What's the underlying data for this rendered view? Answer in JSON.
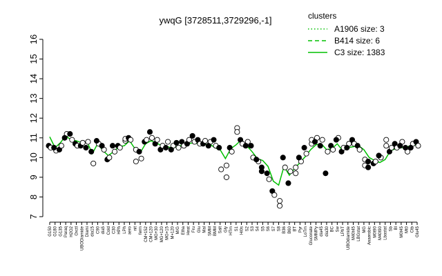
{
  "chart_data": {
    "type": "line",
    "title": "ywqG [3728511,3729296,-1]",
    "xlabel": "",
    "ylabel": "",
    "ylim": [
      7,
      16
    ],
    "yticks": [
      7,
      8,
      9,
      10,
      11,
      12,
      13,
      14,
      15,
      16
    ],
    "grid": false,
    "legend": {
      "title": "clusters",
      "placement": "top-right",
      "color": "#00c000",
      "entries": [
        {
          "label": "A1906 size: 3",
          "style": "dotted"
        },
        {
          "label": "B414 size: 6",
          "style": "dashed"
        },
        {
          "label": "C3 size: 1383",
          "style": "solid"
        }
      ]
    },
    "x_labels": [
      "G150",
      "G180",
      "G135",
      "Paraq",
      "H2O2",
      "Oxctl",
      "UBODiamide",
      "Diami",
      "dia15",
      "C90",
      "dia5",
      "Cold",
      "C30",
      "HPh",
      "LPh",
      "aero",
      "nit",
      "ferm",
      "CM+152",
      "CM+120",
      "MG+30",
      "MG+120",
      "MG+15",
      "M+120",
      "M/G",
      "Etha",
      "Heat",
      "Fru",
      "Glu",
      "Mal",
      "SMM",
      "BMM",
      "Salt",
      "Gly",
      "HTm",
      "S1",
      "Hi0s",
      "S2",
      "S3",
      "S4",
      "S5",
      "S6",
      "S7",
      "S8",
      "B36",
      "B60",
      "BT",
      "Pyr",
      "LoTm",
      "Gluconate",
      "SMMPy",
      "dia45",
      "dia30",
      "BC",
      "Sw",
      "LPhT",
      "UBOdiamide",
      "M40t45",
      "LBGstat",
      "MG",
      "Anaerobic",
      "M0t90",
      "M40t90",
      "Lbastat",
      "Sb",
      "Bl",
      "M0t45",
      "Mt0",
      "Ctb",
      "Glu45"
    ],
    "series": [
      {
        "style": "solid",
        "color": "#00c000",
        "x": [
          1,
          2,
          3,
          4,
          5,
          6,
          7,
          8,
          9,
          10,
          11,
          12,
          13,
          14,
          15,
          16,
          17,
          18,
          19,
          20,
          21,
          22,
          23,
          24,
          25,
          26,
          27,
          28,
          29,
          30,
          31,
          32,
          33,
          34,
          35,
          36,
          37,
          38,
          39,
          40,
          41,
          42,
          43,
          44,
          45,
          46,
          47,
          48,
          49,
          50,
          51,
          52,
          53,
          54,
          55,
          56,
          57,
          58,
          59,
          60,
          61,
          62,
          63,
          64,
          65,
          66,
          67,
          68,
          69,
          70
        ],
        "values": [
          11.05,
          10.5,
          10.75,
          11.1,
          10.9,
          10.85,
          10.75,
          10.8,
          10.2,
          10.7,
          10.35,
          10.1,
          10.3,
          10.55,
          10.6,
          10.85,
          10.45,
          10.25,
          10.7,
          10.85,
          10.75,
          10.6,
          10.55,
          10.5,
          10.55,
          10.65,
          10.7,
          10.75,
          10.7,
          10.65,
          10.7,
          10.5,
          10.4,
          9.95,
          10.45,
          10.65,
          10.9,
          10.6,
          10.3,
          9.95,
          9.85,
          9.55,
          8.8,
          8.6,
          9.55,
          9.1,
          9.45,
          9.75,
          10.05,
          10.4,
          10.65,
          10.7,
          10.4,
          10.45,
          10.7,
          10.35,
          10.5,
          10.55,
          10.6,
          10.4,
          10.0,
          9.85,
          9.75,
          9.9,
          10.35,
          10.45,
          10.5,
          10.55,
          10.6,
          10.65
        ]
      }
    ],
    "points": [
      {
        "x": 1,
        "y": 10.6,
        "open": false
      },
      {
        "x": 1,
        "y": 10.5,
        "open": true
      },
      {
        "x": 2,
        "y": 10.35,
        "open": true
      },
      {
        "x": 2,
        "y": 10.5,
        "open": false
      },
      {
        "x": 3,
        "y": 10.4,
        "open": false
      },
      {
        "x": 3,
        "y": 10.6,
        "open": true
      },
      {
        "x": 4,
        "y": 11.2,
        "open": true
      },
      {
        "x": 4,
        "y": 11.0,
        "open": false
      },
      {
        "x": 5,
        "y": 11.2,
        "open": false
      },
      {
        "x": 5,
        "y": 10.9,
        "open": true
      },
      {
        "x": 6,
        "y": 10.7,
        "open": false
      },
      {
        "x": 6,
        "y": 10.6,
        "open": true
      },
      {
        "x": 7,
        "y": 10.6,
        "open": false
      },
      {
        "x": 7,
        "y": 10.75,
        "open": true
      },
      {
        "x": 8,
        "y": 10.8,
        "open": true
      },
      {
        "x": 8,
        "y": 10.5,
        "open": false
      },
      {
        "x": 9,
        "y": 10.3,
        "open": false
      },
      {
        "x": 9,
        "y": 9.7,
        "open": true
      },
      {
        "x": 10,
        "y": 10.7,
        "open": true
      },
      {
        "x": 10,
        "y": 10.85,
        "open": false
      },
      {
        "x": 11,
        "y": 10.4,
        "open": true
      },
      {
        "x": 11,
        "y": 10.6,
        "open": false
      },
      {
        "x": 12,
        "y": 9.9,
        "open": false
      },
      {
        "x": 12,
        "y": 10.0,
        "open": true
      },
      {
        "x": 13,
        "y": 10.3,
        "open": true
      },
      {
        "x": 13,
        "y": 10.6,
        "open": false
      },
      {
        "x": 14,
        "y": 10.6,
        "open": false
      },
      {
        "x": 14,
        "y": 10.5,
        "open": true
      },
      {
        "x": 15,
        "y": 10.85,
        "open": true
      },
      {
        "x": 15,
        "y": 10.95,
        "open": true
      },
      {
        "x": 16,
        "y": 11.0,
        "open": false
      },
      {
        "x": 16,
        "y": 10.9,
        "open": true
      },
      {
        "x": 17,
        "y": 10.4,
        "open": true
      },
      {
        "x": 17,
        "y": 9.8,
        "open": true
      },
      {
        "x": 18,
        "y": 10.3,
        "open": false
      },
      {
        "x": 18,
        "y": 9.95,
        "open": true
      },
      {
        "x": 19,
        "y": 10.8,
        "open": false
      },
      {
        "x": 19,
        "y": 10.9,
        "open": true
      },
      {
        "x": 20,
        "y": 11.3,
        "open": false
      },
      {
        "x": 20,
        "y": 11.0,
        "open": true
      },
      {
        "x": 21,
        "y": 10.7,
        "open": false
      },
      {
        "x": 21,
        "y": 10.9,
        "open": true
      },
      {
        "x": 22,
        "y": 10.4,
        "open": false
      },
      {
        "x": 22,
        "y": 10.6,
        "open": true
      },
      {
        "x": 23,
        "y": 10.5,
        "open": false
      },
      {
        "x": 23,
        "y": 10.8,
        "open": true
      },
      {
        "x": 24,
        "y": 10.6,
        "open": true
      },
      {
        "x": 24,
        "y": 10.4,
        "open": false
      },
      {
        "x": 25,
        "y": 10.75,
        "open": false
      },
      {
        "x": 25,
        "y": 10.5,
        "open": true
      },
      {
        "x": 26,
        "y": 10.8,
        "open": false
      },
      {
        "x": 26,
        "y": 10.6,
        "open": true
      },
      {
        "x": 27,
        "y": 10.7,
        "open": false
      },
      {
        "x": 27,
        "y": 10.9,
        "open": true
      },
      {
        "x": 28,
        "y": 11.1,
        "open": false
      },
      {
        "x": 28,
        "y": 10.8,
        "open": true
      },
      {
        "x": 29,
        "y": 10.9,
        "open": false
      },
      {
        "x": 29,
        "y": 10.7,
        "open": true
      },
      {
        "x": 30,
        "y": 10.7,
        "open": false
      },
      {
        "x": 30,
        "y": 10.85,
        "open": true
      },
      {
        "x": 31,
        "y": 10.8,
        "open": true
      },
      {
        "x": 31,
        "y": 10.6,
        "open": false
      },
      {
        "x": 32,
        "y": 10.9,
        "open": false
      },
      {
        "x": 32,
        "y": 10.6,
        "open": true
      },
      {
        "x": 33,
        "y": 10.5,
        "open": false
      },
      {
        "x": 33,
        "y": 9.4,
        "open": true
      },
      {
        "x": 34,
        "y": 9.6,
        "open": true
      },
      {
        "x": 34,
        "y": 9.0,
        "open": true
      },
      {
        "x": 35,
        "y": 10.5,
        "open": false
      },
      {
        "x": 35,
        "y": 10.3,
        "open": true
      },
      {
        "x": 36,
        "y": 11.5,
        "open": true
      },
      {
        "x": 36,
        "y": 11.3,
        "open": true
      },
      {
        "x": 37,
        "y": 10.9,
        "open": false
      },
      {
        "x": 37,
        "y": 10.7,
        "open": true
      },
      {
        "x": 38,
        "y": 10.8,
        "open": true
      },
      {
        "x": 38,
        "y": 10.6,
        "open": false
      },
      {
        "x": 39,
        "y": 10.0,
        "open": true
      },
      {
        "x": 39,
        "y": 10.6,
        "open": false
      },
      {
        "x": 40,
        "y": 9.8,
        "open": true
      },
      {
        "x": 40,
        "y": 9.9,
        "open": false
      },
      {
        "x": 41,
        "y": 9.5,
        "open": false
      },
      {
        "x": 41,
        "y": 9.3,
        "open": false
      },
      {
        "x": 42,
        "y": 9.2,
        "open": false
      },
      {
        "x": 42,
        "y": 8.9,
        "open": true
      },
      {
        "x": 43,
        "y": 8.3,
        "open": false
      },
      {
        "x": 43,
        "y": 8.1,
        "open": true
      },
      {
        "x": 44,
        "y": 7.8,
        "open": true
      },
      {
        "x": 44,
        "y": 7.55,
        "open": true
      },
      {
        "x": 45,
        "y": 10.0,
        "open": false
      },
      {
        "x": 45,
        "y": 9.5,
        "open": true
      },
      {
        "x": 46,
        "y": 8.7,
        "open": false
      },
      {
        "x": 46,
        "y": 9.3,
        "open": true
      },
      {
        "x": 47,
        "y": 9.5,
        "open": true
      },
      {
        "x": 47,
        "y": 9.2,
        "open": true
      },
      {
        "x": 48,
        "y": 9.8,
        "open": true
      },
      {
        "x": 48,
        "y": 10.0,
        "open": false
      },
      {
        "x": 49,
        "y": 10.2,
        "open": true
      },
      {
        "x": 49,
        "y": 10.5,
        "open": false
      },
      {
        "x": 50,
        "y": 10.7,
        "open": true
      },
      {
        "x": 50,
        "y": 10.9,
        "open": true
      },
      {
        "x": 51,
        "y": 11.0,
        "open": true
      },
      {
        "x": 51,
        "y": 10.8,
        "open": false
      },
      {
        "x": 52,
        "y": 10.9,
        "open": true
      },
      {
        "x": 52,
        "y": 10.6,
        "open": false
      },
      {
        "x": 53,
        "y": 9.2,
        "open": false
      },
      {
        "x": 53,
        "y": 10.3,
        "open": true
      },
      {
        "x": 54,
        "y": 10.6,
        "open": false
      },
      {
        "x": 54,
        "y": 10.4,
        "open": true
      },
      {
        "x": 55,
        "y": 11.0,
        "open": true
      },
      {
        "x": 55,
        "y": 10.9,
        "open": false
      },
      {
        "x": 56,
        "y": 10.3,
        "open": false
      },
      {
        "x": 56,
        "y": 10.5,
        "open": true
      },
      {
        "x": 57,
        "y": 10.7,
        "open": true
      },
      {
        "x": 57,
        "y": 10.5,
        "open": false
      },
      {
        "x": 58,
        "y": 10.9,
        "open": false
      },
      {
        "x": 58,
        "y": 10.7,
        "open": true
      },
      {
        "x": 59,
        "y": 10.6,
        "open": false
      },
      {
        "x": 59,
        "y": 10.4,
        "open": true
      },
      {
        "x": 60,
        "y": 9.9,
        "open": true
      },
      {
        "x": 60,
        "y": 9.6,
        "open": true
      },
      {
        "x": 61,
        "y": 9.8,
        "open": false
      },
      {
        "x": 61,
        "y": 9.5,
        "open": false
      },
      {
        "x": 62,
        "y": 9.7,
        "open": false
      },
      {
        "x": 62,
        "y": 9.8,
        "open": true
      },
      {
        "x": 63,
        "y": 10.0,
        "open": true
      },
      {
        "x": 63,
        "y": 10.1,
        "open": false
      },
      {
        "x": 64,
        "y": 10.9,
        "open": true
      },
      {
        "x": 64,
        "y": 10.6,
        "open": true
      },
      {
        "x": 65,
        "y": 10.3,
        "open": false
      },
      {
        "x": 65,
        "y": 10.5,
        "open": true
      },
      {
        "x": 66,
        "y": 10.7,
        "open": false
      },
      {
        "x": 66,
        "y": 10.5,
        "open": true
      },
      {
        "x": 67,
        "y": 10.8,
        "open": true
      },
      {
        "x": 67,
        "y": 10.6,
        "open": false
      },
      {
        "x": 68,
        "y": 10.3,
        "open": true
      },
      {
        "x": 68,
        "y": 10.5,
        "open": false
      },
      {
        "x": 69,
        "y": 10.7,
        "open": true
      },
      {
        "x": 69,
        "y": 10.5,
        "open": false
      },
      {
        "x": 70,
        "y": 10.8,
        "open": false
      },
      {
        "x": 70,
        "y": 10.6,
        "open": true
      }
    ]
  }
}
